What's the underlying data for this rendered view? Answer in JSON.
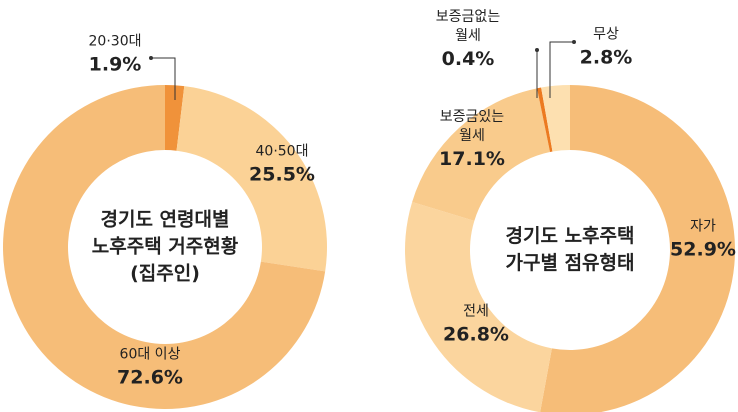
{
  "chart_data": [
    {
      "type": "donut",
      "title": [
        "경기도 연령대별",
        "노후주택 거주현황",
        "(집주인)"
      ],
      "categories": [
        "20·30대",
        "40·50대",
        "60대 이상"
      ],
      "values": [
        1.9,
        25.5,
        72.6
      ],
      "value_labels": [
        "1.9%",
        "25.5%",
        "72.6%"
      ],
      "colors": [
        "#f0923a",
        "#fbd296",
        "#f6bd78"
      ]
    },
    {
      "type": "donut",
      "title": [
        "경기도 노후주택",
        "가구별 점유형태"
      ],
      "categories": [
        "자가",
        "전세",
        "보증금있는\n월세",
        "보증금없는\n월세",
        "무상"
      ],
      "values": [
        52.9,
        26.8,
        17.1,
        0.4,
        2.8
      ],
      "value_labels": [
        "52.9%",
        "26.8%",
        "17.1%",
        "0.4%",
        "2.8%"
      ],
      "colors": [
        "#f6bd78",
        "#fbd59e",
        "#f9cb8c",
        "#ec7a20",
        "#fde0b0"
      ]
    }
  ]
}
